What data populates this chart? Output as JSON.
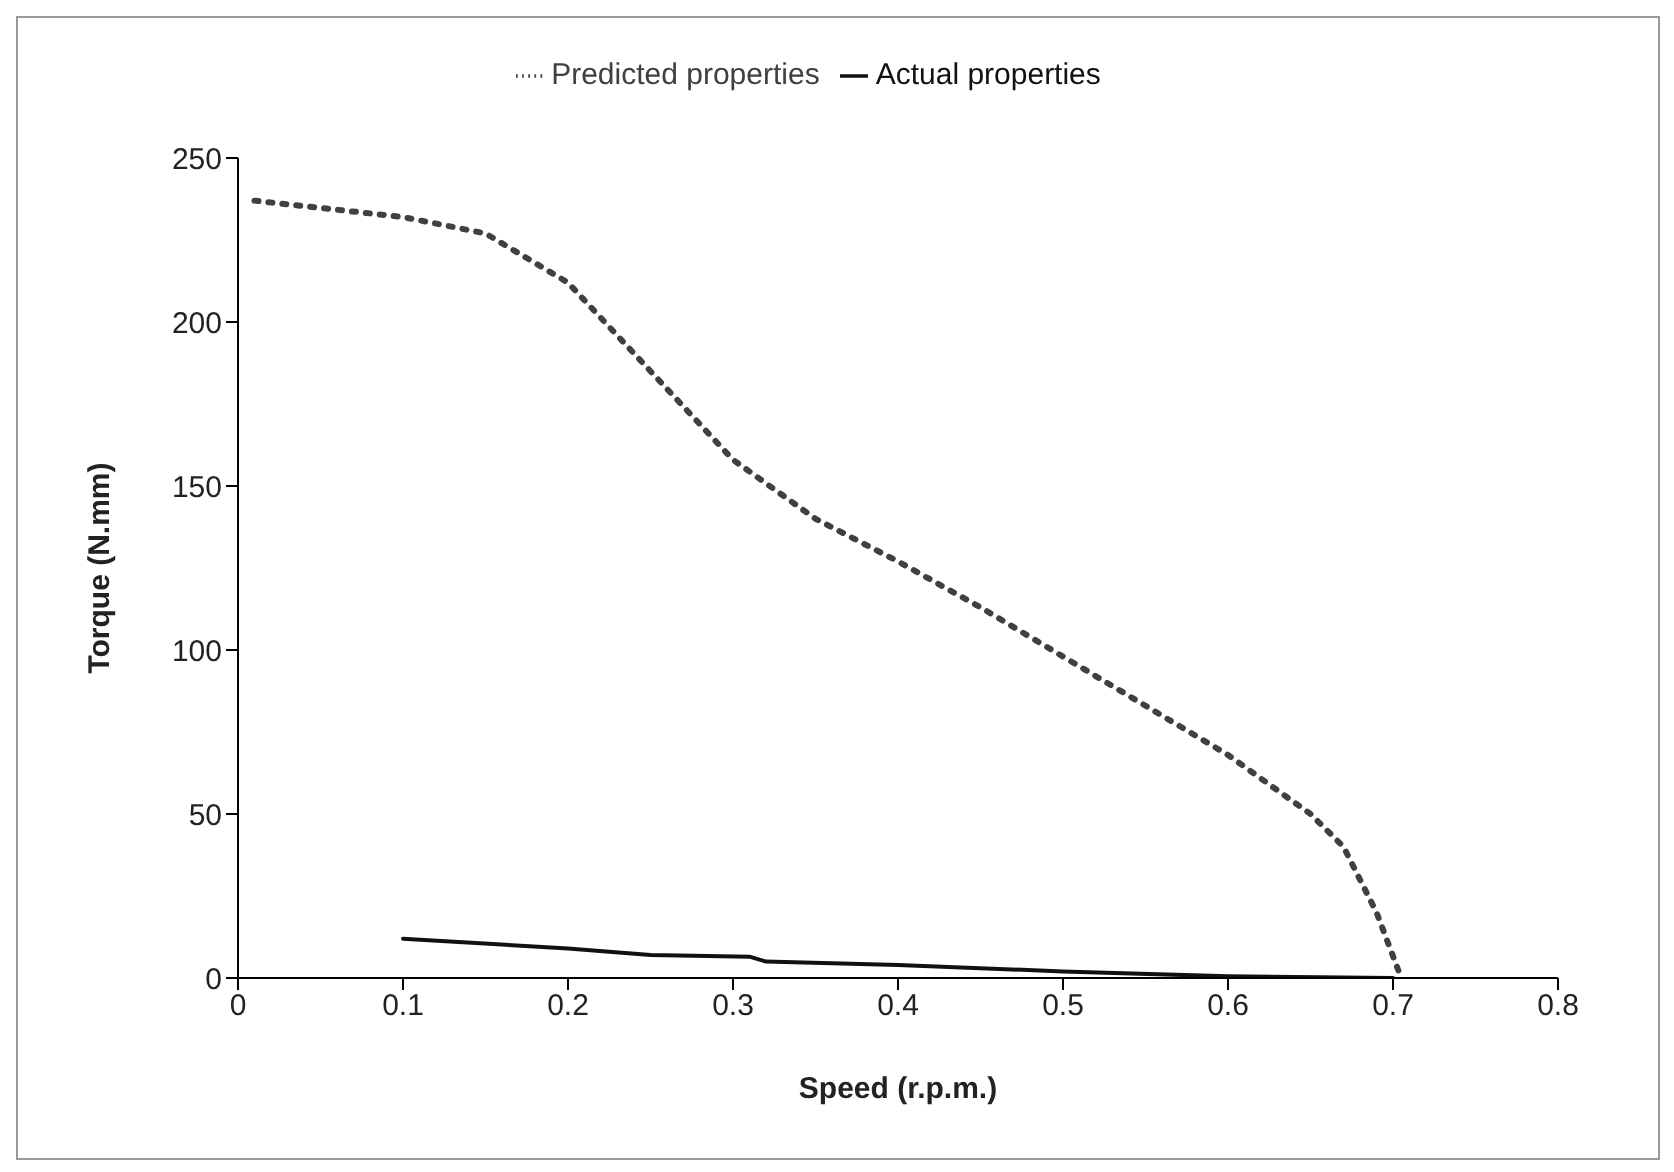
{
  "chart_data": {
    "type": "line",
    "xlabel": "Speed (r.p.m.)",
    "ylabel": "Torque (N.mm)",
    "xlim": [
      0,
      0.8
    ],
    "xticks": [
      0,
      0.1,
      0.2,
      0.3,
      0.4,
      0.5,
      0.6,
      0.7,
      0.8
    ],
    "ylim": [
      0,
      250
    ],
    "yticks": [
      0,
      50,
      100,
      150,
      200,
      250
    ],
    "grid": false,
    "legend": "top",
    "marker": "none",
    "series": [
      {
        "name": "Predicted properties",
        "color": "#404040",
        "line_style": "dotted",
        "x": [
          0.01,
          0.1,
          0.15,
          0.2,
          0.25,
          0.3,
          0.35,
          0.4,
          0.45,
          0.5,
          0.55,
          0.6,
          0.65,
          0.67,
          0.69,
          0.705
        ],
        "values": [
          237,
          232,
          227,
          212,
          185,
          158,
          140,
          127,
          113,
          98,
          83,
          68,
          50,
          40,
          20,
          0
        ]
      },
      {
        "name": "Actual properties",
        "color": "#111111",
        "line_style": "solid",
        "x": [
          0.1,
          0.2,
          0.25,
          0.31,
          0.32,
          0.4,
          0.5,
          0.6,
          0.7
        ],
        "values": [
          12,
          9,
          7,
          6.5,
          5,
          4,
          2,
          0.5,
          0
        ]
      }
    ]
  }
}
